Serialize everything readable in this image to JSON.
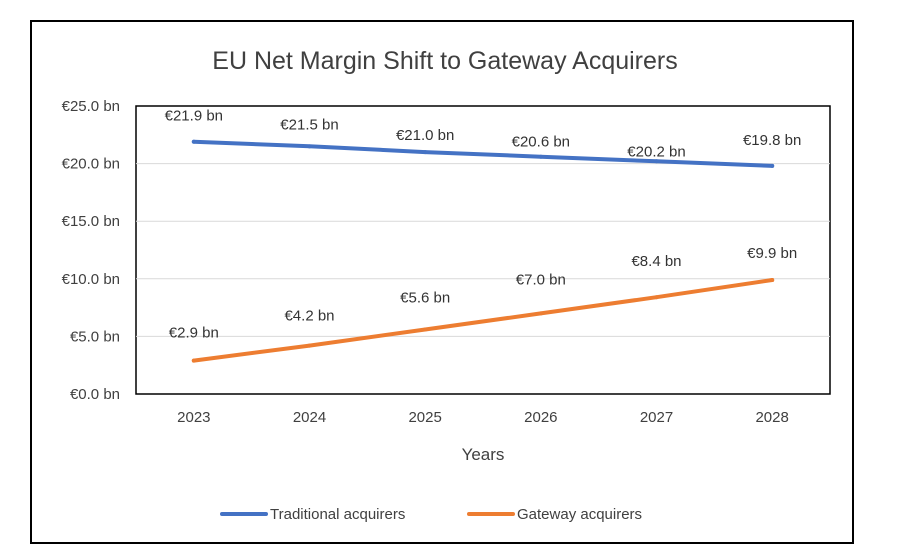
{
  "chart_data": {
    "type": "line",
    "title": "EU Net Margin Shift to Gateway Acquirers",
    "xlabel": "Years",
    "ylabel": "",
    "categories": [
      "2023",
      "2024",
      "2025",
      "2026",
      "2027",
      "2028"
    ],
    "ylim": [
      0,
      25
    ],
    "y_ticks": [
      0,
      5,
      10,
      15,
      20,
      25
    ],
    "y_tick_labels": [
      "€0.0 bn",
      "€5.0 bn",
      "€10.0 bn",
      "€15.0 bn",
      "€20.0 bn",
      "€25.0 bn"
    ],
    "grid": true,
    "legend_position": "bottom",
    "series": [
      {
        "name": "Traditional acquirers",
        "color": "#4472C4",
        "values": [
          21.9,
          21.5,
          21.0,
          20.6,
          20.2,
          19.8
        ],
        "labels": [
          "€21.9 bn",
          "€21.5 bn",
          "€21.0 bn",
          "€20.6 bn",
          "€20.2 bn",
          "€19.8 bn"
        ]
      },
      {
        "name": "Gateway acquirers",
        "color": "#ED7D31",
        "values": [
          2.9,
          4.2,
          5.6,
          7.0,
          8.4,
          9.9
        ],
        "labels": [
          "€2.9 bn",
          "€4.2 bn",
          "€5.6 bn",
          "€7.0 bn",
          "€8.4 bn",
          "€9.9 bn"
        ]
      }
    ]
  }
}
